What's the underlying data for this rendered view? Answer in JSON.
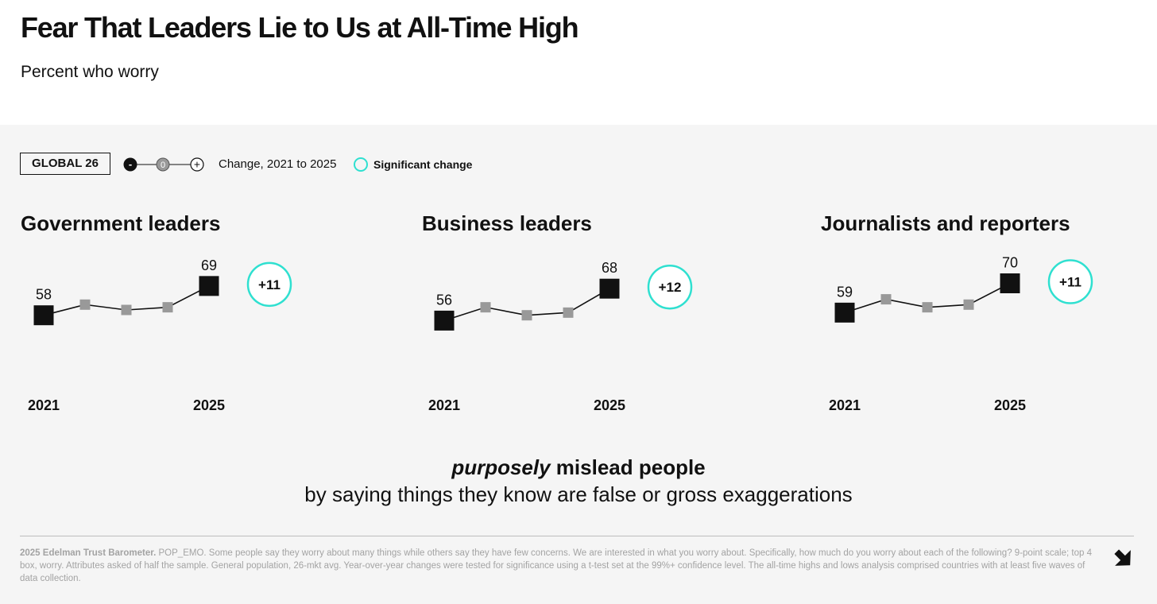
{
  "header": {
    "title": "Fear That Leaders Lie to Us at All-Time High",
    "subtitle": "Percent who worry"
  },
  "legend": {
    "global_label": "GLOBAL 26",
    "scale_minus": "-",
    "scale_zero": "0",
    "scale_plus": "+",
    "change_label": "Change, 2021 to 2025",
    "significant_label": "Significant change"
  },
  "colors": {
    "accent": "#2fe0d0",
    "endpoint": "#111111",
    "intermediate": "#999999",
    "panel_bg": "#f5f5f5"
  },
  "chart_data": [
    {
      "type": "line",
      "title": "Government leaders",
      "x": [
        "2021",
        "2022",
        "2023",
        "2024",
        "2025"
      ],
      "values": [
        58,
        62,
        60,
        61,
        69
      ],
      "labels": [
        "58",
        "",
        "",
        "",
        "69"
      ],
      "x_tick_labels": [
        "2021",
        "2025"
      ],
      "change": "+11",
      "significant": true
    },
    {
      "type": "line",
      "title": "Business leaders",
      "x": [
        "2021",
        "2022",
        "2023",
        "2024",
        "2025"
      ],
      "values": [
        56,
        61,
        58,
        59,
        68
      ],
      "labels": [
        "56",
        "",
        "",
        "",
        "68"
      ],
      "x_tick_labels": [
        "2021",
        "2025"
      ],
      "change": "+12",
      "significant": true
    },
    {
      "type": "line",
      "title": "Journalists and reporters",
      "x": [
        "2021",
        "2022",
        "2023",
        "2024",
        "2025"
      ],
      "values": [
        59,
        64,
        61,
        62,
        70
      ],
      "labels": [
        "59",
        "",
        "",
        "",
        "70"
      ],
      "x_tick_labels": [
        "2021",
        "2025"
      ],
      "change": "+11",
      "significant": true
    }
  ],
  "caption": {
    "emphasis": "purposely",
    "line1_rest": " mislead people",
    "line2": "by saying things they know are false or gross exaggerations"
  },
  "footnote": {
    "source": "2025 Edelman Trust Barometer.",
    "text": " POP_EMO. Some people say they worry about many things while others say they have few concerns. We are interested in what you worry about. Specifically, how much do you worry about each of the following? 9-point scale; top 4 box, worry. Attributes asked of half the sample. General population, 26-mkt avg. Year-over-year changes were tested for significance using a t-test set at the 99%+ confidence level. The all-time highs and lows analysis comprised countries with at least five waves of data collection."
  },
  "navigation": {
    "next_icon": "arrow-down-right-icon"
  }
}
